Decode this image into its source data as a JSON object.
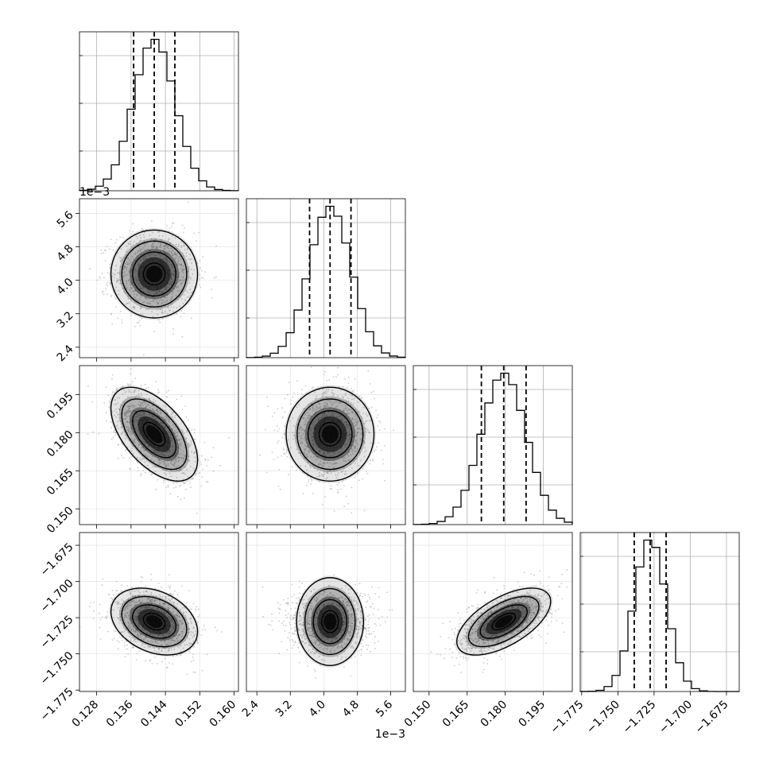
{
  "chart_data": {
    "type": "corner",
    "parameters": [
      {
        "index": 0,
        "range": [
          0.124,
          0.161
        ],
        "ticks": [
          0.128,
          0.136,
          0.144,
          0.152,
          0.16
        ],
        "tick_labels": [
          "0.128",
          "0.136",
          "0.144",
          "0.152",
          "0.160"
        ],
        "quantiles": [
          0.1366,
          0.1414,
          0.1462
        ],
        "mean": 0.1414,
        "sd": 0.0048
      },
      {
        "index": 1,
        "range": [
          0.00215,
          0.00595
        ],
        "ticks": [
          0.0024,
          0.0032,
          0.004,
          0.0048,
          0.0056
        ],
        "tick_labels": [
          "2.4",
          "3.2",
          "4.0",
          "4.8",
          "5.6"
        ],
        "offset_label": "1e−3",
        "quantiles": [
          0.00366,
          0.00415,
          0.00465
        ],
        "mean": 0.00415,
        "sd": 0.0005
      },
      {
        "index": 2,
        "range": [
          0.1438,
          0.2064
        ],
        "ticks": [
          0.15,
          0.165,
          0.18,
          0.195
        ],
        "tick_labels": [
          "0.150",
          "0.165",
          "0.180",
          "0.195"
        ],
        "quantiles": [
          0.1706,
          0.1794,
          0.1882
        ],
        "mean": 0.1794,
        "sd": 0.0088
      },
      {
        "index": 3,
        "range": [
          -1.776,
          -1.6662
        ],
        "ticks": [
          -1.775,
          -1.75,
          -1.725,
          -1.7,
          -1.675
        ],
        "tick_labels": [
          "−1.775",
          "−1.750",
          "−1.725",
          "−1.700",
          "−1.675"
        ],
        "quantiles": [
          -1.7387,
          -1.7277,
          -1.7167
        ],
        "mean": -1.7277,
        "sd": 0.011
      }
    ],
    "row_offset_labels": {
      "1": "1e−3"
    },
    "column_offset_labels": {
      "1": "1e−3"
    },
    "correlations": [
      [
        1.0,
        0.0,
        -0.55,
        -0.3
      ],
      [
        0.0,
        1.0,
        0.0,
        0.0
      ],
      [
        -0.55,
        0.0,
        1.0,
        0.6
      ],
      [
        -0.3,
        0.0,
        0.6,
        1.0
      ]
    ],
    "histogram_bins": 20,
    "contour_levels_sigma": [
      0.5,
      1.0,
      1.5,
      2.0
    ],
    "diagonal_quantile_lines": "dashed",
    "grid": true
  }
}
